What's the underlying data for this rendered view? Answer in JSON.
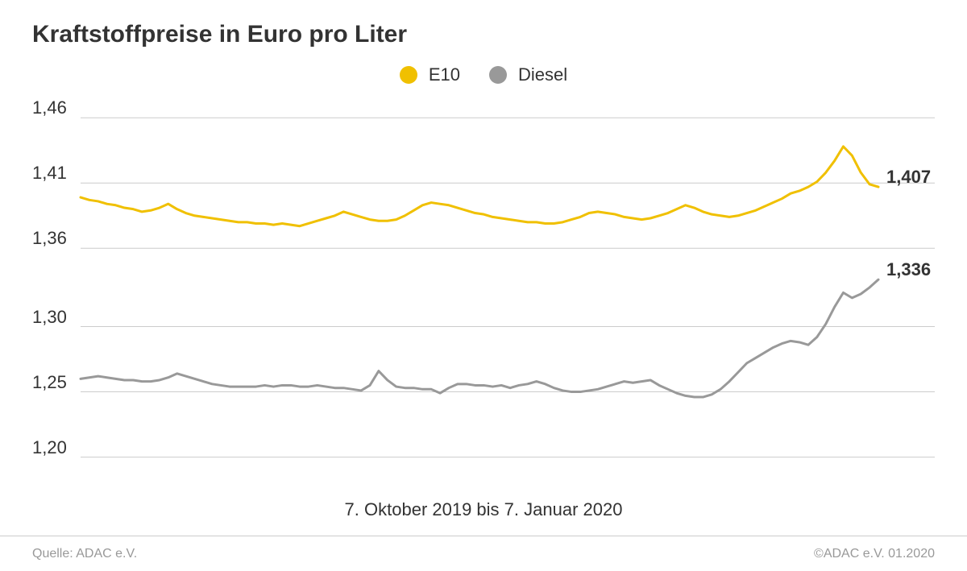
{
  "title": "Kraftstoffpreise in Euro pro Liter",
  "legend": [
    {
      "label": "E10",
      "color": "#f0c000"
    },
    {
      "label": "Diesel",
      "color": "#999999"
    }
  ],
  "xaxis_label": "7. Oktober 2019 bis 7. Januar 2020",
  "footer_left": "Quelle: ADAC e.V.",
  "footer_right": "©ADAC e.V.  01.2020",
  "chart": {
    "type": "line",
    "background_color": "#ffffff",
    "grid_color": "#cccccc",
    "grid_line_width": 1,
    "line_width": 3,
    "ylim": [
      1.18,
      1.47
    ],
    "ytick_labels": [
      "1,20",
      "1,25",
      "1,30",
      "1,36",
      "1,41",
      "1,46"
    ],
    "ytick_values": [
      1.2,
      1.25,
      1.3,
      1.36,
      1.41,
      1.46
    ],
    "tick_fontsize": 22,
    "title_fontsize": 30,
    "legend_fontsize": 22,
    "series": [
      {
        "name": "E10",
        "color": "#f0c000",
        "end_label": "1,407",
        "values": [
          1.399,
          1.397,
          1.396,
          1.394,
          1.393,
          1.391,
          1.39,
          1.388,
          1.389,
          1.391,
          1.394,
          1.39,
          1.387,
          1.385,
          1.384,
          1.383,
          1.382,
          1.381,
          1.38,
          1.38,
          1.379,
          1.379,
          1.378,
          1.379,
          1.378,
          1.377,
          1.379,
          1.381,
          1.383,
          1.385,
          1.388,
          1.386,
          1.384,
          1.382,
          1.381,
          1.381,
          1.382,
          1.385,
          1.389,
          1.393,
          1.395,
          1.394,
          1.393,
          1.391,
          1.389,
          1.387,
          1.386,
          1.384,
          1.383,
          1.382,
          1.381,
          1.38,
          1.38,
          1.379,
          1.379,
          1.38,
          1.382,
          1.384,
          1.387,
          1.388,
          1.387,
          1.386,
          1.384,
          1.383,
          1.382,
          1.383,
          1.385,
          1.387,
          1.39,
          1.393,
          1.391,
          1.388,
          1.386,
          1.385,
          1.384,
          1.385,
          1.387,
          1.389,
          1.392,
          1.395,
          1.398,
          1.402,
          1.404,
          1.407,
          1.411,
          1.418,
          1.427,
          1.438,
          1.431,
          1.418,
          1.409,
          1.407
        ]
      },
      {
        "name": "Diesel",
        "color": "#999999",
        "end_label": "1,336",
        "values": [
          1.26,
          1.261,
          1.262,
          1.261,
          1.26,
          1.259,
          1.259,
          1.258,
          1.258,
          1.259,
          1.261,
          1.264,
          1.262,
          1.26,
          1.258,
          1.256,
          1.255,
          1.254,
          1.254,
          1.254,
          1.254,
          1.255,
          1.254,
          1.255,
          1.255,
          1.254,
          1.254,
          1.255,
          1.254,
          1.253,
          1.253,
          1.252,
          1.251,
          1.255,
          1.266,
          1.259,
          1.254,
          1.253,
          1.253,
          1.252,
          1.252,
          1.249,
          1.253,
          1.256,
          1.256,
          1.255,
          1.255,
          1.254,
          1.255,
          1.253,
          1.255,
          1.256,
          1.258,
          1.256,
          1.253,
          1.251,
          1.25,
          1.25,
          1.251,
          1.252,
          1.254,
          1.256,
          1.258,
          1.257,
          1.258,
          1.259,
          1.255,
          1.252,
          1.249,
          1.247,
          1.246,
          1.246,
          1.248,
          1.252,
          1.258,
          1.265,
          1.272,
          1.276,
          1.28,
          1.284,
          1.287,
          1.289,
          1.288,
          1.286,
          1.292,
          1.302,
          1.315,
          1.326,
          1.322,
          1.325,
          1.33,
          1.336
        ]
      }
    ]
  }
}
